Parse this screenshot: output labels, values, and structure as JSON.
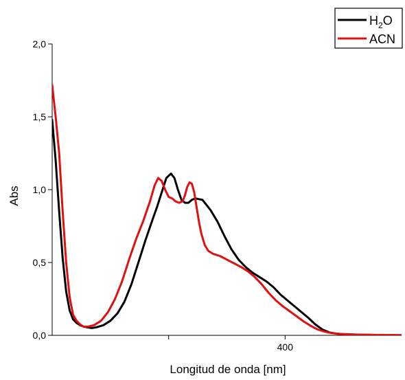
{
  "chart_data": {
    "type": "line",
    "title": "",
    "xlabel": "Longitud de onda [nm]",
    "ylabel": "Abs",
    "xlim": [
      200,
      500
    ],
    "ylim": [
      0,
      2.0
    ],
    "x_ticks": [
      {
        "value": 300,
        "label": ""
      },
      {
        "value": 400,
        "label": "400"
      }
    ],
    "y_ticks": [
      {
        "value": 0.0,
        "label": "0,0"
      },
      {
        "value": 0.5,
        "label": "0,5"
      },
      {
        "value": 1.0,
        "label": "1,0"
      },
      {
        "value": 1.5,
        "label": "1,5"
      },
      {
        "value": 2.0,
        "label": "2,0"
      }
    ],
    "grid": false,
    "legend": {
      "placement": "top-right",
      "entries": [
        {
          "series": 0,
          "label_main": "H",
          "label_sub": "2",
          "label_tail": "O"
        },
        {
          "series": 1,
          "label_main": "ACN",
          "label_sub": "",
          "label_tail": ""
        }
      ]
    },
    "series": [
      {
        "name": "H2O",
        "color": "#000000",
        "x": [
          200,
          203,
          206,
          209,
          212,
          215,
          218,
          221,
          224,
          227,
          230,
          234,
          238,
          244,
          250,
          256,
          262,
          268,
          274,
          280,
          286,
          290,
          294,
          298,
          302,
          305,
          308,
          311,
          314,
          317,
          320,
          323,
          326,
          329,
          332,
          336,
          342,
          348,
          354,
          360,
          366,
          372,
          378,
          384,
          390,
          396,
          402,
          408,
          414,
          420,
          426,
          432,
          438,
          444,
          450,
          458,
          466,
          480,
          500
        ],
        "y": [
          1.48,
          1.2,
          0.85,
          0.53,
          0.3,
          0.17,
          0.11,
          0.085,
          0.07,
          0.06,
          0.055,
          0.05,
          0.055,
          0.07,
          0.1,
          0.15,
          0.23,
          0.35,
          0.5,
          0.65,
          0.79,
          0.88,
          0.98,
          1.08,
          1.11,
          1.08,
          1.0,
          0.93,
          0.91,
          0.91,
          0.93,
          0.94,
          0.935,
          0.93,
          0.9,
          0.86,
          0.78,
          0.68,
          0.59,
          0.52,
          0.47,
          0.43,
          0.4,
          0.37,
          0.33,
          0.28,
          0.24,
          0.2,
          0.16,
          0.12,
          0.075,
          0.04,
          0.02,
          0.012,
          0.008,
          0.006,
          0.004,
          0.002,
          0.0
        ]
      },
      {
        "name": "ACN",
        "color": "#e01010",
        "x": [
          200,
          203,
          206,
          209,
          212,
          215,
          218,
          221,
          224,
          227,
          231,
          236,
          242,
          248,
          254,
          260,
          266,
          272,
          278,
          284,
          288,
          291,
          294,
          297,
          300,
          303,
          306,
          309,
          312,
          314,
          316,
          318,
          320,
          322,
          324,
          326,
          328,
          331,
          334,
          338,
          344,
          350,
          356,
          362,
          368,
          374,
          380,
          386,
          392,
          398,
          404,
          410,
          416,
          422,
          428,
          434,
          440,
          446,
          452,
          460,
          480,
          500
        ],
        "y": [
          1.72,
          1.5,
          1.25,
          0.85,
          0.5,
          0.26,
          0.14,
          0.1,
          0.075,
          0.06,
          0.06,
          0.07,
          0.1,
          0.16,
          0.25,
          0.37,
          0.52,
          0.66,
          0.78,
          0.92,
          1.03,
          1.08,
          1.06,
          1.0,
          0.95,
          0.94,
          0.92,
          0.91,
          0.92,
          0.96,
          1.02,
          1.05,
          1.04,
          0.98,
          0.88,
          0.78,
          0.7,
          0.62,
          0.58,
          0.56,
          0.545,
          0.52,
          0.495,
          0.47,
          0.44,
          0.4,
          0.35,
          0.29,
          0.24,
          0.2,
          0.165,
          0.13,
          0.095,
          0.065,
          0.04,
          0.025,
          0.015,
          0.01,
          0.007,
          0.005,
          0.003,
          0.002
        ]
      }
    ]
  }
}
